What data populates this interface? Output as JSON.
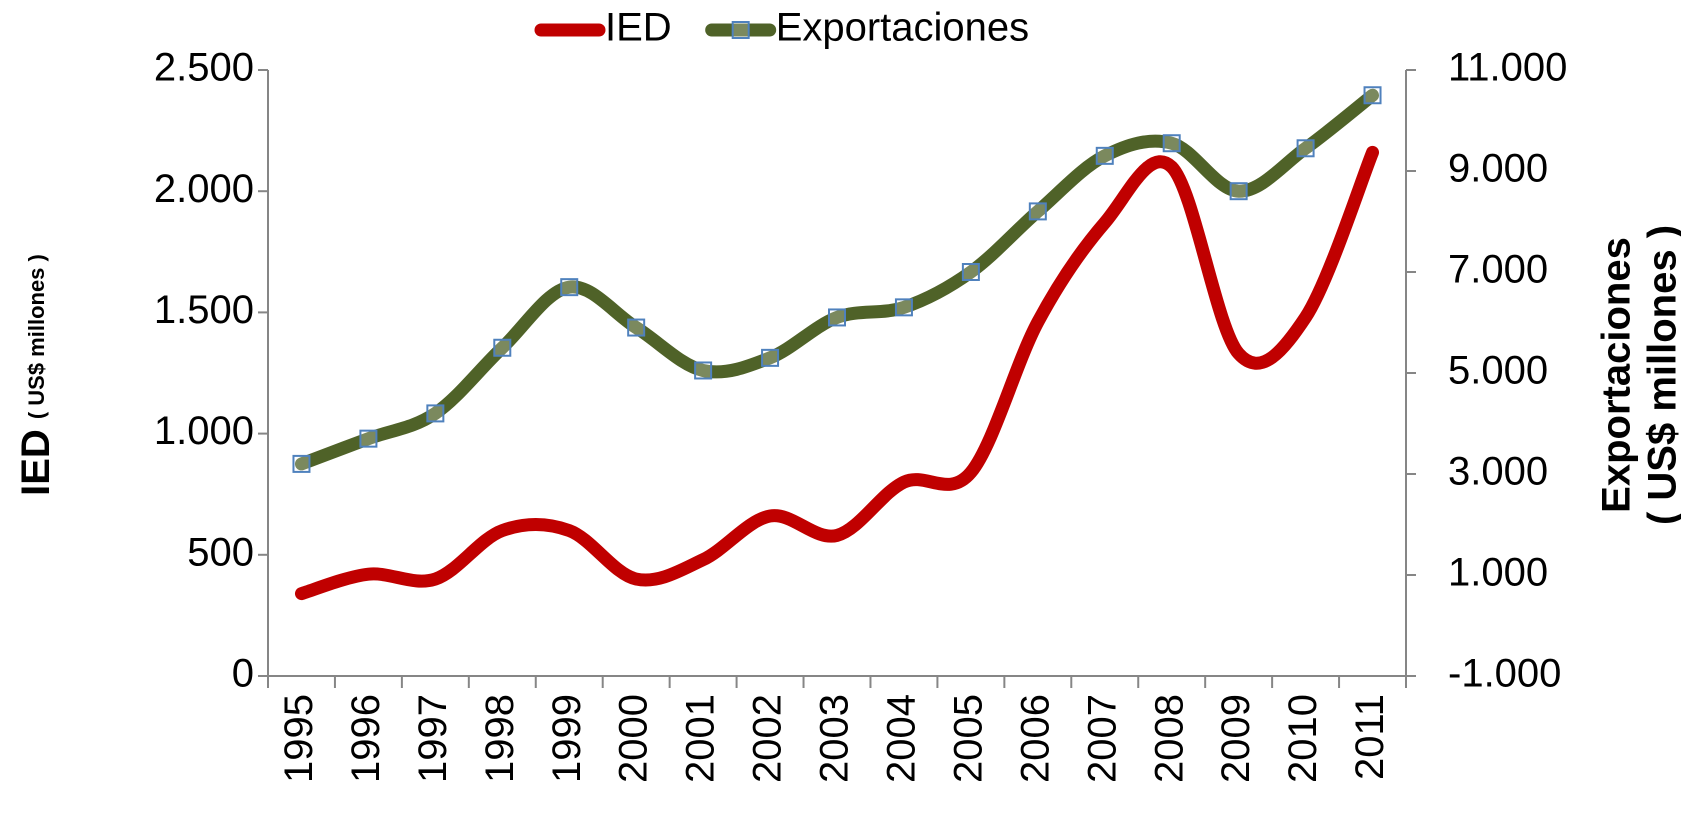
{
  "chart_data": {
    "type": "line",
    "ylabel": "IED",
    "ylabel_sub": "( US$ millones )",
    "y2label": "Exportaciones",
    "y2label_sub": "( US$ millones )",
    "categories": [
      "1995",
      "1996",
      "1997",
      "1998",
      "1999",
      "2000",
      "2001",
      "2002",
      "2003",
      "2004",
      "2005",
      "2006",
      "2007",
      "2008",
      "2009",
      "2010",
      "2011"
    ],
    "series": [
      {
        "name": "IED",
        "color": "#c00000",
        "smooth": true,
        "values": [
          340,
          420,
          400,
          600,
          600,
          400,
          480,
          660,
          580,
          800,
          840,
          1460,
          1870,
          2100,
          1330,
          1480,
          2160
        ]
      },
      {
        "name": "Exportaciones",
        "color": "#4f6228",
        "axis": "y2",
        "smooth": true,
        "marker": "square",
        "marker_color": "#4f81bd",
        "values": [
          3200,
          3700,
          4200,
          5500,
          6700,
          5900,
          5050,
          5300,
          6100,
          6300,
          7000,
          8200,
          9300,
          9550,
          8600,
          9450,
          10500
        ]
      }
    ],
    "ylim": [
      0,
      2500
    ],
    "yticks": [
      0,
      500,
      {
        "value": 1000,
        "label": "1.000"
      },
      {
        "value": 1500,
        "label": "1.500"
      },
      {
        "value": 2000,
        "label": "2.000"
      },
      {
        "value": 2500,
        "label": "2.500"
      }
    ],
    "y2lim": [
      -1000,
      11000
    ],
    "y2ticks": [
      {
        "value": -1000,
        "label": "-1.000"
      },
      {
        "value": 1000,
        "label": "1.000"
      },
      {
        "value": 3000,
        "label": "3.000"
      },
      {
        "value": 5000,
        "label": "5.000"
      },
      {
        "value": 7000,
        "label": "7.000"
      },
      {
        "value": 9000,
        "label": "9.000"
      },
      {
        "value": 11000,
        "label": "11.000"
      }
    ],
    "legend": "top",
    "grid": false
  }
}
